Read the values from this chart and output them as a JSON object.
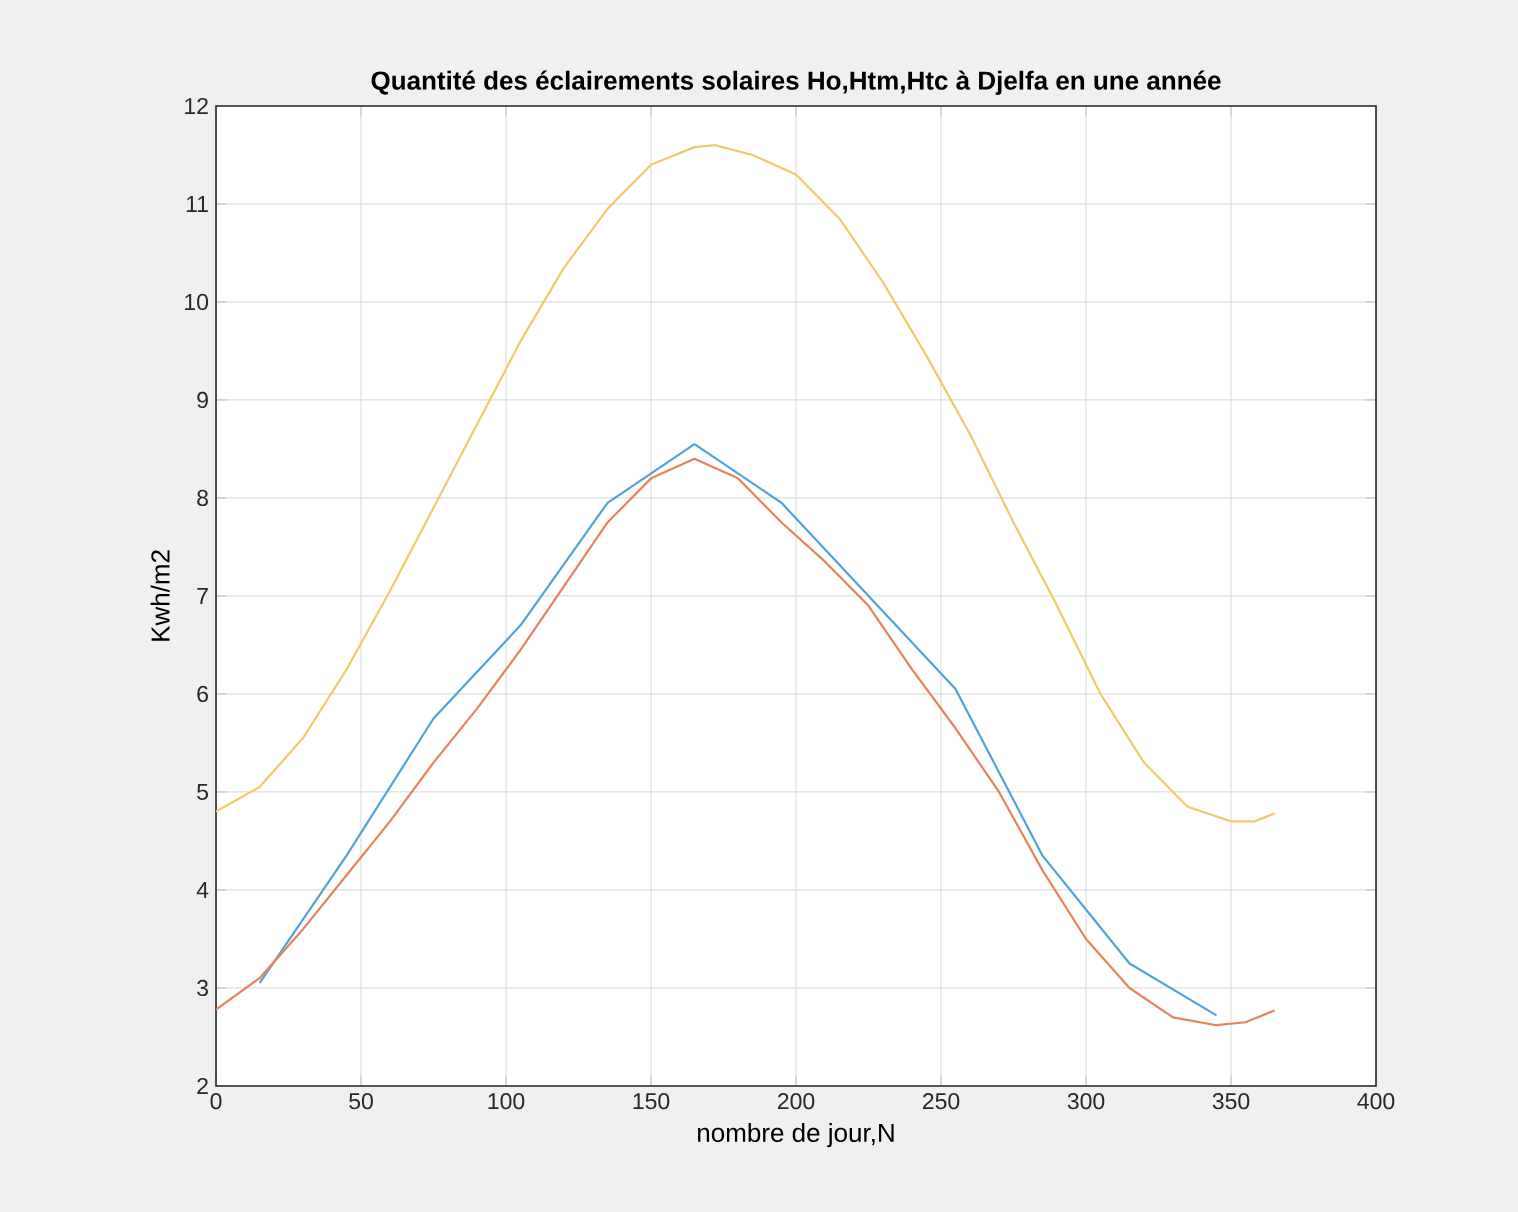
{
  "chart_data": {
    "type": "line",
    "title": "Quantité des éclairements solaires Ho,Htm,Htc à Djelfa en une année",
    "xlabel": "nombre de jour,N",
    "ylabel": "Kwh/m2",
    "xlim": [
      0,
      400
    ],
    "ylim": [
      2,
      12
    ],
    "xticks": [
      0,
      50,
      100,
      150,
      200,
      250,
      300,
      350,
      400
    ],
    "yticks": [
      2,
      3,
      4,
      5,
      6,
      7,
      8,
      9,
      10,
      11,
      12
    ],
    "grid": true,
    "line_style": "solid",
    "marker": "none",
    "series": [
      {
        "color": "#4ea3dc",
        "x": [
          15,
          45,
          75,
          105,
          135,
          165,
          195,
          225,
          255,
          285,
          315,
          345
        ],
        "values": [
          3.05,
          4.35,
          5.75,
          6.7,
          7.95,
          8.55,
          7.95,
          7.0,
          6.05,
          4.35,
          3.25,
          2.72
        ]
      },
      {
        "color": "#e8825a",
        "x": [
          0,
          15,
          30,
          45,
          60,
          75,
          90,
          105,
          120,
          135,
          150,
          165,
          180,
          195,
          210,
          225,
          240,
          255,
          270,
          285,
          300,
          315,
          330,
          345,
          355,
          365
        ],
        "values": [
          2.78,
          3.1,
          3.6,
          4.15,
          4.7,
          5.3,
          5.85,
          6.45,
          7.1,
          7.75,
          8.2,
          8.4,
          8.2,
          7.75,
          7.35,
          6.9,
          6.25,
          5.65,
          5.0,
          4.2,
          3.5,
          3.0,
          2.7,
          2.62,
          2.65,
          2.77
        ]
      },
      {
        "color": "#f2c96a",
        "x": [
          0,
          15,
          30,
          45,
          60,
          75,
          90,
          105,
          120,
          135,
          150,
          165,
          172,
          185,
          200,
          215,
          230,
          245,
          260,
          275,
          290,
          305,
          320,
          335,
          350,
          358,
          365
        ],
        "values": [
          4.8,
          5.05,
          5.55,
          6.25,
          7.05,
          7.9,
          8.75,
          9.6,
          10.35,
          10.95,
          11.4,
          11.58,
          11.6,
          11.5,
          11.3,
          10.85,
          10.2,
          9.45,
          8.65,
          7.75,
          6.9,
          6.0,
          5.3,
          4.85,
          4.7,
          4.7,
          4.78
        ]
      }
    ]
  }
}
